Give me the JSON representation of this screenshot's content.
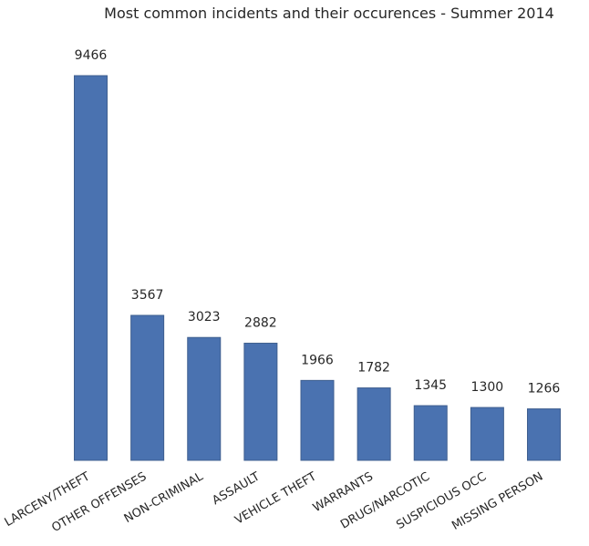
{
  "chart_data": {
    "type": "bar",
    "title": "Most common incidents and their occurences - Summer 2014",
    "xlabel": "",
    "ylabel": "",
    "categories": [
      "LARCENY/THEFT",
      "OTHER OFFENSES",
      "NON-CRIMINAL",
      "ASSAULT",
      "VEHICLE THEFT",
      "WARRANTS",
      "DRUG/NARCOTIC",
      "SUSPICIOUS OCC",
      "MISSING PERSON"
    ],
    "values": [
      9466,
      3567,
      3023,
      2882,
      1966,
      1782,
      1345,
      1300,
      1266
    ],
    "ylim": [
      0,
      9466
    ],
    "grid": false,
    "legend": "none",
    "bar_color": "#4a72b0"
  }
}
